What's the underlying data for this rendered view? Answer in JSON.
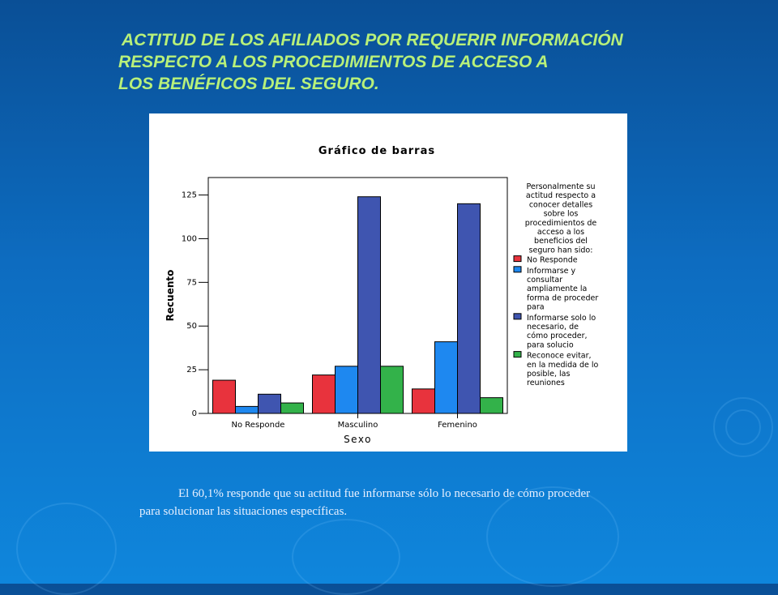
{
  "title_lines": [
    "ACTITUD DE LOS AFILIADOS POR REQUERIR INFORMACIÓN",
    "RESPECTO A LOS PROCEDIMIENTOS DE ACCESO A",
    "LOS BENÉFICOS DEL SEGURO."
  ],
  "caption_lines": [
    "El 60,1% responde que su actitud fue informarse sólo lo necesario de cómo proceder",
    "para solucionar las situaciones específicas."
  ],
  "chart_data": {
    "type": "bar",
    "title": "Gráfico de barras",
    "xlabel": "Sexo",
    "ylabel": "Recuento",
    "categories": [
      "No Responde",
      "Masculino",
      "Femenino"
    ],
    "ylim": [
      0,
      135
    ],
    "yticks": [
      0,
      25,
      50,
      75,
      100,
      125
    ],
    "legend_title_lines": [
      "Personalmente su",
      "actitud respecto a",
      "conocer detalles",
      "sobre los",
      "procedimientos de",
      "acceso a los",
      "beneficios del",
      "seguro han sido:"
    ],
    "legend_position": "right",
    "series": [
      {
        "label_lines": [
          "No Responde"
        ],
        "color": "#e8333d",
        "values": [
          19,
          22,
          14
        ]
      },
      {
        "label_lines": [
          "Informarse y",
          "consultar",
          "ampliamente la",
          "forma de proceder",
          "para"
        ],
        "color": "#1e88f0",
        "values": [
          4,
          27,
          41
        ]
      },
      {
        "label_lines": [
          "Informarse solo lo",
          "necesario, de",
          "cómo proceder,",
          "para solucio"
        ],
        "color": "#3f55b0",
        "values": [
          11,
          124,
          120
        ]
      },
      {
        "label_lines": [
          "Reconoce evitar,",
          "en la medida de lo",
          "posible, las",
          "reuniones"
        ],
        "color": "#33b24a",
        "values": [
          6,
          27,
          9
        ]
      }
    ]
  }
}
